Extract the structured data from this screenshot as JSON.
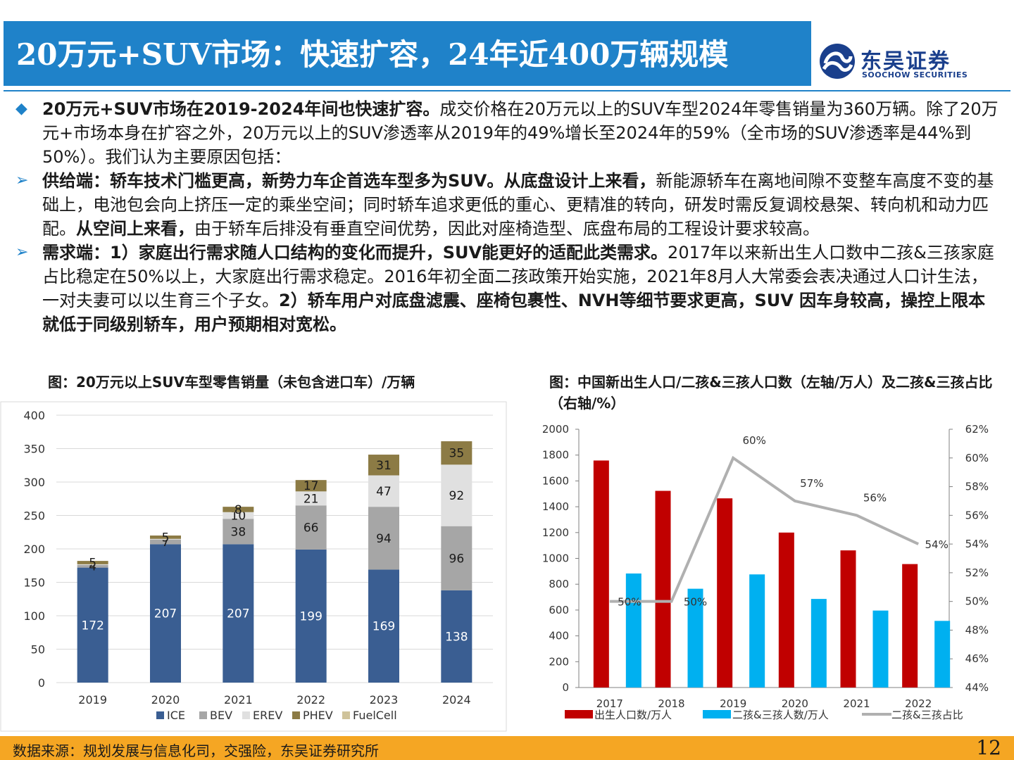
{
  "title": "20万元+SUV市场：快速扩容，24年近400万辆规模",
  "logo": {
    "cn": "东吴证券",
    "en": "SOOCHOW SECURITIES"
  },
  "paragraphs": [
    {
      "bold": "20万元+SUV市场在2019-2024年间也快速扩容。",
      "text": "成交价格在20万元以上的SUV车型2024年零售销量为360万辆。除了20万元+市场本身在扩容之外，20万元以上的SUV渗透率从2019年的49%增长至2024年的59%（全市场的SUV渗透率是44%到50%）。我们认为主要原因包括："
    },
    {
      "bold": "供给端：轿车技术门槛更高，新势力车企首选车型多为SUV。从底盘设计上来看，",
      "text": "新能源轿车在离地间隙不变整车高度不变的基础上，电池包会向上挤压一定的乘坐空间；同时轿车追求更低的重心、更精准的转向，研发时需反复调校悬架、转向机和动力匹配。",
      "bold2": "从空间上来看，",
      "text2": "由于轿车后排没有垂直空间优势，因此对座椅造型、底盘布局的工程设计要求较高。"
    },
    {
      "bold": "需求端：1）家庭出行需求随人口结构的变化而提升，SUV能更好的适配此类需求。",
      "text": "2017年以来新出生人口数中二孩&三孩家庭占比稳定在50%以上，大家庭出行需求稳定。2016年初全面二孩政策开始实施，2021年8月人大常委会表决通过人口计生法，一对夫妻可以以生育三个子女。",
      "bold2": "2）轿车用户对底盘滤震、座椅包裹性、NVH等细节要求更高，SUV 因车身较高，操控上限本就低于同级别轿车，用户预期相对宽松。",
      "text2": ""
    }
  ],
  "chart1_title": "图：20万元以上SUV车型零售销量（未包含进口车）/万辆",
  "chart2_title": "图：中国新出生人口/二孩&三孩人口数（左轴/万人）及二孩&三孩占比（右轴/%）",
  "footer": {
    "source": "数据来源：规划发展与信息化司，交强险，东吴证券研究所",
    "page": "12"
  },
  "chart_data": [
    {
      "type": "bar",
      "stacked": true,
      "title": "图：20万元以上SUV车型零售销量（未包含进口车）/万辆",
      "categories": [
        "2019",
        "2020",
        "2021",
        "2022",
        "2023",
        "2024"
      ],
      "ylim": [
        0,
        400
      ],
      "yticks": [
        0,
        50,
        100,
        150,
        200,
        250,
        300,
        350,
        400
      ],
      "legend_position": "bottom",
      "grid": true,
      "series": [
        {
          "name": "ICE",
          "color": "#3a5e92",
          "label_color": "#ffffff",
          "values": [
            172,
            207,
            207,
            199,
            169,
            138
          ]
        },
        {
          "name": "BEV",
          "color": "#a6a6a6",
          "label_color": "#1a1a1a",
          "values": [
            4,
            7,
            38,
            66,
            94,
            96
          ]
        },
        {
          "name": "EREV",
          "color": "#e0e0e0",
          "label_color": "#1a1a1a",
          "values": [
            1,
            1,
            10,
            21,
            47,
            92
          ]
        },
        {
          "name": "PHEV",
          "color": "#8c7b45",
          "label_color": "#1a1a1a",
          "values": [
            5,
            5,
            8,
            17,
            31,
            35
          ]
        },
        {
          "name": "FuelCell",
          "color": "#cfc39b",
          "label_color": "#1a1a1a",
          "values": [
            0,
            0,
            0,
            0,
            0,
            0
          ]
        }
      ],
      "labels": [
        [
          "172",
          "4",
          "",
          "5",
          ""
        ],
        [
          "207",
          "7",
          "",
          "5",
          ""
        ],
        [
          "207",
          "38",
          "10",
          "8",
          ""
        ],
        [
          "199",
          "66",
          "21",
          "17",
          ""
        ],
        [
          "169",
          "94",
          "47",
          "31",
          ""
        ],
        [
          "138",
          "96",
          "92",
          "35",
          ""
        ]
      ]
    },
    {
      "type": "bar",
      "title": "图：中国新出生人口/二孩&三孩人口数（左轴/万人）及二孩&三孩占比（右轴/%）",
      "categories": [
        "2017",
        "2018",
        "2019",
        "2020",
        "2021",
        "2022"
      ],
      "ylim": [
        0,
        2000
      ],
      "yticks": [
        0,
        200,
        400,
        600,
        800,
        1000,
        1200,
        1400,
        1600,
        1800,
        2000
      ],
      "y2lim": [
        44,
        62
      ],
      "y2ticks": [
        "44%",
        "46%",
        "48%",
        "50%",
        "52%",
        "54%",
        "56%",
        "58%",
        "60%",
        "62%"
      ],
      "legend_position": "bottom",
      "grid": false,
      "series": [
        {
          "name": "出生人口数/万人",
          "type": "bar",
          "axis": "left",
          "color": "#c00000",
          "values": [
            1758,
            1523,
            1465,
            1200,
            1062,
            956
          ]
        },
        {
          "name": "二孩&三孩人数/万人",
          "type": "bar",
          "axis": "left",
          "color": "#00b0f0",
          "values": [
            883,
            765,
            876,
            686,
            596,
            516
          ]
        },
        {
          "name": "二孩&三孩占比",
          "type": "line",
          "axis": "right",
          "color": "#b0b0b0",
          "values": [
            50,
            50,
            60,
            57,
            56,
            54
          ],
          "labels": [
            "50%",
            "50%",
            "60%",
            "57%",
            "56%",
            "54%"
          ]
        }
      ]
    }
  ]
}
